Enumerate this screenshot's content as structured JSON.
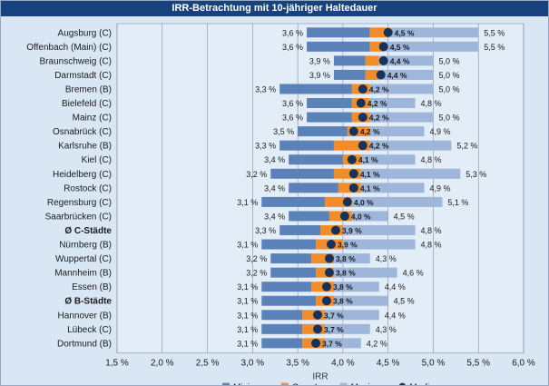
{
  "title": "IRR-Betrachtung mit 10-jähriger Haltedauer",
  "chart_data": {
    "type": "bar",
    "title": "IRR-Betrachtung mit 10-jähriger Haltedauer",
    "xlabel": "IRR",
    "ylabel": "",
    "xlim": [
      1.5,
      6.0
    ],
    "xticks": [
      1.5,
      2.0,
      2.5,
      3.0,
      3.5,
      4.0,
      4.5,
      5.0,
      5.5,
      6.0
    ],
    "xtick_labels": [
      "1,5 %",
      "2,0 %",
      "2,5 %",
      "3,0 %",
      "3,5 %",
      "4,0 %",
      "4,5 %",
      "5,0 %",
      "5,5 %",
      "6,0 %"
    ],
    "grid": true,
    "legend_position": "bottom",
    "legend": [
      "Minimum,",
      "Core-I.,",
      "Maximum,",
      "Median"
    ],
    "colors": {
      "minimum": "#5b82b8",
      "core": "#f28c28",
      "maximum": "#9db6da",
      "median": "#17335c"
    },
    "categories": [
      "Augsburg (C)",
      "Offenbach (Main) (C)",
      "Braunschweig (C)",
      "Darmstadt (C)",
      "Bremen (B)",
      "Bielefeld (C)",
      "Mainz (C)",
      "Osnabrück (C)",
      "Karlsruhe (B)",
      "Kiel (C)",
      "Heidelberg (C)",
      "Rostock (C)",
      "Regensburg (C)",
      "Saarbrücken (C)",
      "Ø C-Städte",
      "Nürnberg (B)",
      "Wuppertal (C)",
      "Mannheim (B)",
      "Essen (B)",
      "Ø B-Städte",
      "Hannover (B)",
      "Lübeck (C)",
      "Dortmund (B)"
    ],
    "bold_categories": [
      "Ø C-Städte",
      "Ø B-Städte"
    ],
    "series": [
      {
        "name": "Minimum",
        "values": [
          3.6,
          3.6,
          3.9,
          3.9,
          3.3,
          3.6,
          3.6,
          3.5,
          3.3,
          3.4,
          3.2,
          3.4,
          3.1,
          3.4,
          3.3,
          3.1,
          3.2,
          3.2,
          3.1,
          3.1,
          3.1,
          3.1,
          3.1
        ]
      },
      {
        "name": "Core-I.",
        "values": [
          4.5,
          4.5,
          4.4,
          4.4,
          4.2,
          4.2,
          4.2,
          4.2,
          4.2,
          4.1,
          4.1,
          4.1,
          4.0,
          4.0,
          3.9,
          3.9,
          3.8,
          3.8,
          3.8,
          3.8,
          3.7,
          3.7,
          3.7
        ]
      },
      {
        "name": "Maximum",
        "values": [
          5.5,
          5.5,
          5.0,
          5.0,
          5.0,
          4.8,
          5.0,
          4.9,
          5.2,
          4.8,
          5.3,
          4.9,
          5.1,
          4.5,
          4.8,
          4.8,
          4.3,
          4.6,
          4.4,
          4.5,
          4.4,
          4.3,
          4.2
        ]
      }
    ],
    "min_labels": [
      "3,6 %",
      "3,6 %",
      "3,9 %",
      "3,9 %",
      "3,3 %",
      "3,6 %",
      "3,6 %",
      "3,5 %",
      "3,3 %",
      "3,4 %",
      "3,2 %",
      "3,4 %",
      "3,1 %",
      "3,4 %",
      "3,3 %",
      "3,1 %",
      "3,2 %",
      "3,2 %",
      "3,1 %",
      "3,1 %",
      "3,1 %",
      "3,1 %",
      "3,1 %"
    ],
    "core_labels": [
      "4,5 %",
      "4,5 %",
      "4,4 %",
      "4,4 %",
      "4,2 %",
      "4,2 %",
      "4,2 %",
      "4,2 %",
      "4,2 %",
      "4,1 %",
      "4,1 %",
      "4,1 %",
      "4,0 %",
      "4,0 %",
      "3,9 %",
      "3,9 %",
      "3,8 %",
      "3,8 %",
      "3,8 %",
      "3,8 %",
      "3,7 %",
      "3,7 %",
      "3,7 %"
    ],
    "max_labels": [
      "5,5 %",
      "5,5 %",
      "5,0 %",
      "5,0 %",
      "5,0 %",
      "4,8 %",
      "5,0 %",
      "4,9 %",
      "5,2 %",
      "4,8 %",
      "5,3 %",
      "4,9 %",
      "5,1 %",
      "4,5 %",
      "4,8 %",
      "4,8 %",
      "4,3 %",
      "4,6 %",
      "4,4 %",
      "4,5 %",
      "4,4 %",
      "4,3 %",
      "4,2 %"
    ],
    "core_low": [
      4.3,
      4.3,
      4.25,
      4.25,
      4.1,
      4.1,
      4.1,
      4.05,
      3.9,
      4.0,
      3.9,
      3.95,
      3.8,
      3.85,
      3.75,
      3.7,
      3.65,
      3.7,
      3.65,
      3.7,
      3.55,
      3.55,
      3.55
    ],
    "core_high": [
      4.5,
      4.45,
      4.4,
      4.4,
      4.3,
      4.3,
      4.3,
      4.3,
      4.3,
      4.2,
      4.2,
      4.2,
      4.1,
      4.1,
      4.0,
      4.0,
      3.9,
      3.9,
      3.9,
      3.9,
      3.8,
      3.8,
      3.8
    ],
    "median": [
      4.5,
      4.45,
      4.45,
      4.42,
      4.22,
      4.2,
      4.22,
      4.12,
      4.22,
      4.1,
      4.12,
      4.12,
      4.05,
      4.02,
      3.92,
      3.87,
      3.85,
      3.85,
      3.82,
      3.82,
      3.72,
      3.72,
      3.7
    ]
  }
}
